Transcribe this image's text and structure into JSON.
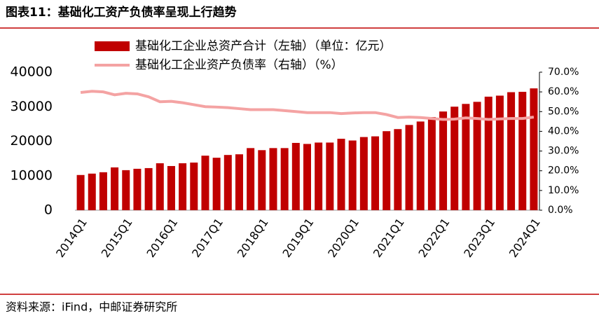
{
  "chart_data": {
    "type": "bar-line",
    "title": "图表11：基础化工资产负债率呈现上行趋势",
    "categories": [
      "2014Q1",
      null,
      null,
      null,
      "2015Q1",
      null,
      null,
      null,
      "2016Q1",
      null,
      null,
      null,
      "2017Q1",
      null,
      null,
      null,
      "2018Q1",
      null,
      null,
      null,
      "2019Q1",
      null,
      null,
      null,
      "2020Q1",
      null,
      null,
      null,
      "2021Q1",
      null,
      null,
      null,
      "2022Q1",
      null,
      null,
      null,
      "2023Q1",
      null,
      null,
      null,
      "2024Q1"
    ],
    "series": [
      {
        "name": "基础化工企业总资产合计（左轴）（单位：亿元）",
        "type": "bar",
        "color": "#c00000",
        "values": [
          10200,
          10600,
          11000,
          12400,
          11600,
          12000,
          12200,
          13600,
          12800,
          13600,
          13800,
          15800,
          15200,
          16000,
          16200,
          18000,
          17400,
          18000,
          18000,
          19500,
          19200,
          19600,
          19600,
          20700,
          20200,
          21200,
          21400,
          22900,
          23500,
          24700,
          25700,
          27000,
          28600,
          30000,
          30800,
          31400,
          32900,
          33200,
          34200,
          34300,
          35300
        ]
      },
      {
        "name": "基础化工企业资产负债率（右轴）（%）",
        "type": "line",
        "axis": "y2",
        "color": "#f4a3a3",
        "values": [
          59.7,
          60.3,
          60.0,
          58.5,
          59.3,
          59.0,
          57.5,
          55.0,
          55.2,
          54.5,
          53.5,
          52.5,
          52.3,
          52.0,
          51.5,
          51.0,
          51.0,
          51.0,
          50.5,
          50.0,
          49.5,
          49.5,
          49.5,
          49.0,
          49.3,
          49.5,
          49.5,
          48.5,
          47.0,
          47.2,
          47.0,
          46.5,
          46.0,
          46.2,
          46.8,
          46.5,
          46.0,
          46.3,
          46.5,
          46.5,
          47.2
        ]
      }
    ],
    "ylim": [
      0,
      40000
    ],
    "yticks": [
      0,
      10000,
      20000,
      30000,
      40000
    ],
    "y2lim": [
      0,
      70
    ],
    "y2ticks": [
      {
        "value": 0,
        "label": "0.0%"
      },
      {
        "value": 10,
        "label": "10.0%"
      },
      {
        "value": 20,
        "label": "20.0%"
      },
      {
        "value": 30,
        "label": "30.0%"
      },
      {
        "value": 40,
        "label": "40.0%"
      },
      {
        "value": 50,
        "label": "50.0%"
      },
      {
        "value": 60,
        "label": "60.0%"
      },
      {
        "value": 70,
        "label": "70.0%"
      }
    ]
  },
  "source": "资料来源：iFind，中邮证券研究所"
}
